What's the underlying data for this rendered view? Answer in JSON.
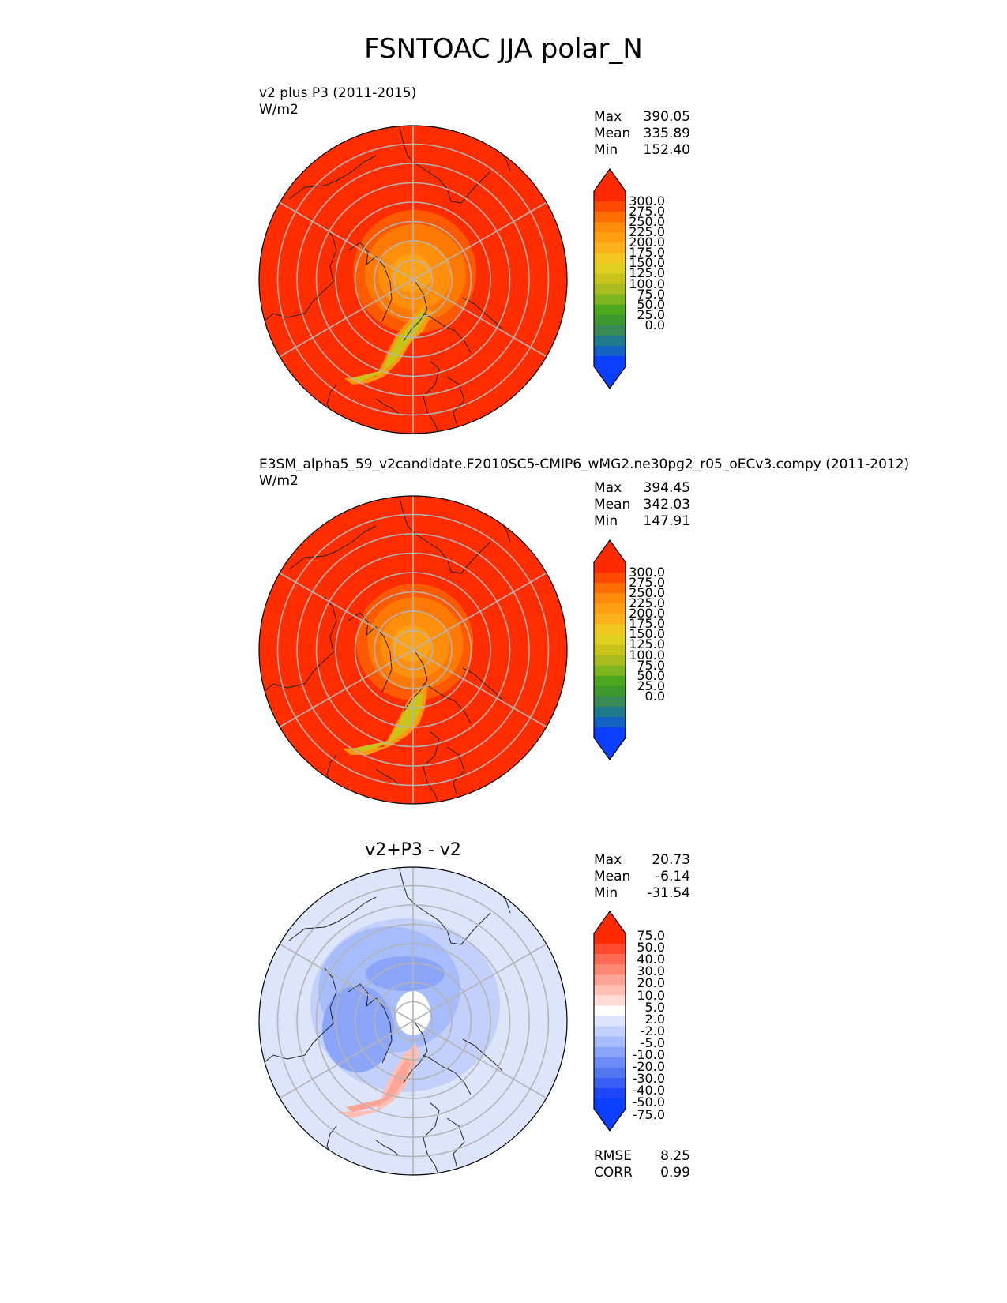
{
  "page_title": "FSNTOAC JJA polar_N",
  "panels": [
    {
      "title_line1": "v2 plus P3 (2011-2015)",
      "units": "W/m2",
      "stats": {
        "Max": "390.05",
        "Mean": "335.89",
        "Min": "152.40"
      },
      "colorbar": {
        "ticks": [
          "300.0",
          "275.0",
          "250.0",
          "225.0",
          "200.0",
          "175.0",
          "150.0",
          "125.0",
          "100.0",
          "75.0",
          "50.0",
          "25.0",
          "0.0"
        ],
        "colors": [
          "#ff2a00",
          "#ff4a00",
          "#ff6e00",
          "#ff8c0a",
          "#ff9f12",
          "#fbb11a",
          "#f2c820",
          "#e0d020",
          "#c9c41a",
          "#a9bd1f",
          "#7fb51e",
          "#4ea81d",
          "#3b9a2b",
          "#3a8a57",
          "#1f7a8a",
          "#1262c4",
          "#0a3fff"
        ],
        "over": "#ff2a00",
        "under": "#0a3fff"
      }
    },
    {
      "title_line1": "E3SM_alpha5_59_v2candidate.F2010SC5-CMIP6_wMG2.ne30pg2_r05_oECv3.compy (2011-2012)",
      "units": "W/m2",
      "stats": {
        "Max": "394.45",
        "Mean": "342.03",
        "Min": "147.91"
      },
      "colorbar": {
        "ticks": [
          "300.0",
          "275.0",
          "250.0",
          "225.0",
          "200.0",
          "175.0",
          "150.0",
          "125.0",
          "100.0",
          "75.0",
          "50.0",
          "25.0",
          "0.0"
        ],
        "colors": [
          "#ff2a00",
          "#ff4a00",
          "#ff6e00",
          "#ff8c0a",
          "#ff9f12",
          "#fbb11a",
          "#f2c820",
          "#e0d020",
          "#c9c41a",
          "#a9bd1f",
          "#7fb51e",
          "#4ea81d",
          "#3b9a2b",
          "#3a8a57",
          "#1f7a8a",
          "#1262c4",
          "#0a3fff"
        ],
        "over": "#ff2a00",
        "under": "#0a3fff"
      }
    },
    {
      "title_center": "v2+P3 - v2",
      "stats": {
        "Max": "20.73",
        "Mean": "-6.14",
        "Min": "-31.54"
      },
      "extra_stats": {
        "RMSE": "8.25",
        "CORR": "0.99"
      },
      "colorbar": {
        "ticks": [
          "75.0",
          "50.0",
          "40.0",
          "30.0",
          "20.0",
          "10.0",
          "5.0",
          "2.0",
          "-2.0",
          "-5.0",
          "-10.0",
          "-20.0",
          "-30.0",
          "-40.0",
          "-50.0",
          "-75.0"
        ],
        "colors": [
          "#ff2a00",
          "#ff4a2e",
          "#ff6a55",
          "#ff8874",
          "#ffa597",
          "#ffbfb4",
          "#ffdcd6",
          "#ffffff",
          "#dde4fb",
          "#c3d0fb",
          "#a7bcfa",
          "#8ba5f8",
          "#6d8cf5",
          "#5275f2",
          "#3a5ff4",
          "#1f46f8",
          "#0a3fff"
        ],
        "over": "#ff2a00",
        "under": "#0a3fff"
      }
    }
  ],
  "chart_data": [
    {
      "type": "heatmap",
      "projection": "north polar stereographic",
      "variable": "FSNTOAC",
      "season": "JJA",
      "region": "polar_N",
      "title": "v2 plus P3 (2011-2015)",
      "units": "W/m2",
      "stats": {
        "max": 390.05,
        "mean": 335.89,
        "min": 152.4
      },
      "levels": [
        0,
        25,
        50,
        75,
        100,
        125,
        150,
        175,
        200,
        225,
        250,
        275,
        300
      ],
      "grid": true
    },
    {
      "type": "heatmap",
      "projection": "north polar stereographic",
      "variable": "FSNTOAC",
      "season": "JJA",
      "region": "polar_N",
      "title": "E3SM_alpha5_59_v2candidate.F2010SC5-CMIP6_wMG2.ne30pg2_r05_oECv3.compy (2011-2012)",
      "units": "W/m2",
      "stats": {
        "max": 394.45,
        "mean": 342.03,
        "min": 147.91
      },
      "levels": [
        0,
        25,
        50,
        75,
        100,
        125,
        150,
        175,
        200,
        225,
        250,
        275,
        300
      ],
      "grid": true
    },
    {
      "type": "heatmap",
      "projection": "north polar stereographic",
      "title": "v2+P3 - v2",
      "stats": {
        "max": 20.73,
        "mean": -6.14,
        "min": -31.54,
        "rmse": 8.25,
        "corr": 0.99
      },
      "levels": [
        -75,
        -50,
        -40,
        -30,
        -20,
        -10,
        -5,
        -2,
        2,
        5,
        10,
        20,
        30,
        40,
        50,
        75
      ],
      "grid": true
    }
  ]
}
